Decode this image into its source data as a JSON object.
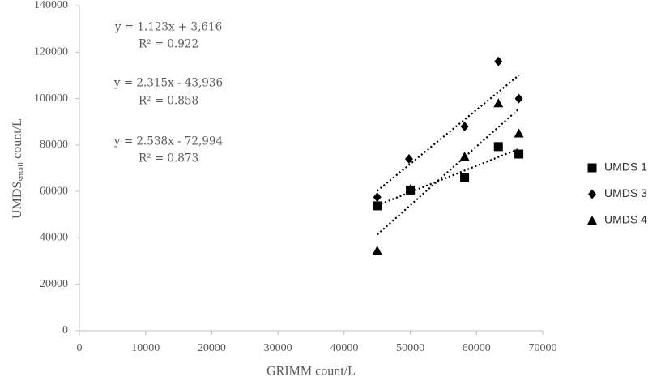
{
  "chart_data": {
    "type": "scatter",
    "x_label": "GRIMM count/L",
    "y_label": "UMDS",
    "y_label_sub": "small",
    "y_label_suffix": " count/L",
    "xlim": [
      0,
      70000
    ],
    "ylim": [
      0,
      140000
    ],
    "xticks": [
      0,
      10000,
      20000,
      30000,
      40000,
      50000,
      60000,
      70000
    ],
    "yticks": [
      0,
      20000,
      40000,
      60000,
      80000,
      100000,
      120000,
      140000
    ],
    "grid": false,
    "trendline": "linear",
    "legend": "right",
    "series": [
      {
        "name": "UMDS 1",
        "marker": "square",
        "color": "#000000",
        "x": [
          45000,
          50000,
          58200,
          63300,
          66400
        ],
        "values": [
          53800,
          60600,
          66000,
          79300,
          76100
        ]
      },
      {
        "name": "UMDS 3",
        "marker": "diamond",
        "color": "#000000",
        "x": [
          45000,
          49800,
          58200,
          63300,
          66400
        ],
        "values": [
          57500,
          74000,
          88000,
          116000,
          100000
        ]
      },
      {
        "name": "UMDS 4",
        "marker": "triangle",
        "color": "#000000",
        "x": [
          45000,
          50000,
          58200,
          63300,
          66400
        ],
        "values": [
          34500,
          61000,
          75000,
          98000,
          85000
        ]
      }
    ],
    "annotations": [
      [
        "y = 1.123x + 3,616",
        "R² = 0.922"
      ],
      [
        "y = 2.315x - 43,936",
        "R² = 0.858"
      ],
      [
        "y = 2.538x - 72,994",
        "R² = 0.873"
      ]
    ]
  }
}
